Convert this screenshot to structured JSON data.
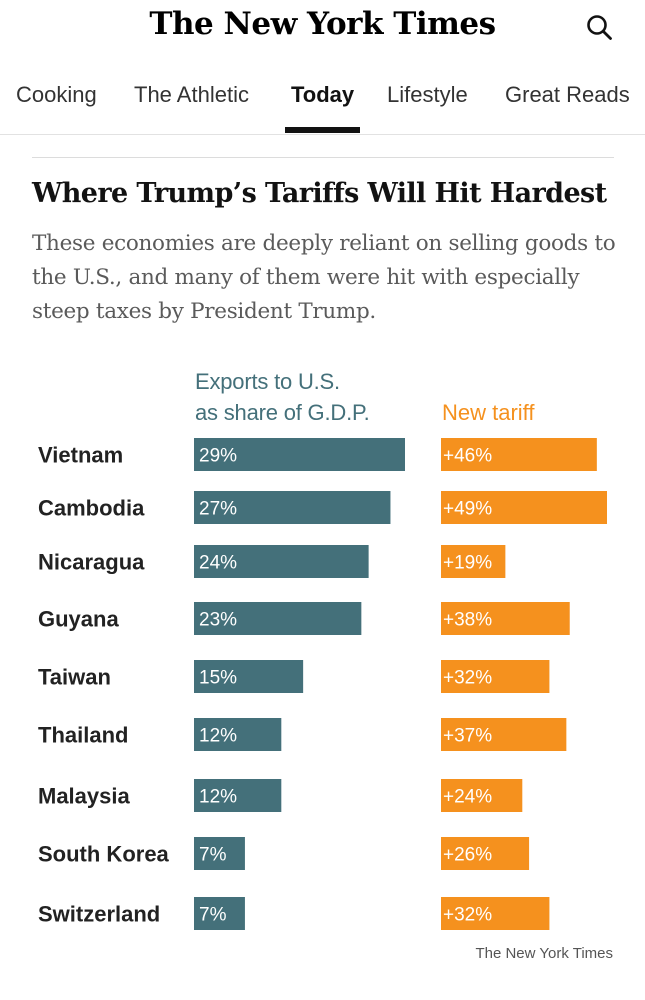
{
  "masthead": {
    "logo": "The New York Times",
    "search_icon": "search-icon"
  },
  "nav": {
    "tabs": [
      {
        "label": "Cooking"
      },
      {
        "label": "The Athletic"
      },
      {
        "label": "Today",
        "active": true
      },
      {
        "label": "Lifestyle"
      },
      {
        "label": "Great Reads"
      }
    ]
  },
  "article": {
    "headline": "Where Trump’s Tariffs Will Hit Hardest",
    "dek": "These economies are deeply reliant on selling goods to the U.S., and many of them were hit with especially steep taxes by President Trump."
  },
  "colors": {
    "exports": "#44707a",
    "tariff": "#f5911e"
  },
  "chart_data": {
    "type": "bar",
    "series": [
      {
        "name": "Exports to U.S. as share of G.D.P.",
        "name_line1": "Exports to U.S.",
        "name_line2": "as share of G.D.P.",
        "values": [
          29,
          27,
          24,
          23,
          15,
          12,
          12,
          7,
          7
        ],
        "labels": [
          "29%",
          "27%",
          "24%",
          "23%",
          "15%",
          "12%",
          "12%",
          "7%",
          "7%"
        ],
        "color": "#44707a"
      },
      {
        "name": "New tariff",
        "values": [
          46,
          49,
          19,
          38,
          32,
          37,
          24,
          26,
          32
        ],
        "labels": [
          "+46%",
          "+49%",
          "+19%",
          "+38%",
          "+32%",
          "+37%",
          "+24%",
          "+26%",
          "+32%"
        ],
        "color": "#f5911e"
      }
    ],
    "categories": [
      "Vietnam",
      "Cambodia",
      "Nicaragua",
      "Guyana",
      "Taiwan",
      "Thailand",
      "Malaysia",
      "South Korea",
      "Switzerland"
    ],
    "source": "The New York Times"
  }
}
